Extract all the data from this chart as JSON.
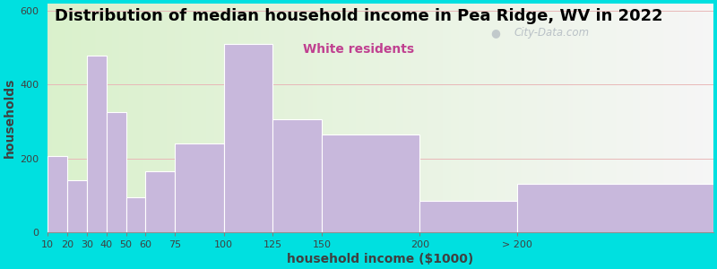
{
  "title": "Distribution of median household income in Pea Ridge, WV in 2022",
  "subtitle": "White residents",
  "xlabel": "household income ($1000)",
  "ylabel": "households",
  "bar_color": "#c8b8dc",
  "bar_edge_color": "white",
  "background_outer": "#00e0e0",
  "background_inner_left": "#d8f0c8",
  "background_inner_right": "#f5f5f5",
  "categories": [
    "10",
    "20",
    "30",
    "40",
    "50",
    "60",
    "75",
    "100",
    "125",
    "150",
    "200",
    "> 200"
  ],
  "values": [
    205,
    140,
    480,
    325,
    95,
    165,
    240,
    510,
    305,
    265,
    85,
    130
  ],
  "bin_left_edges": [
    10,
    20,
    30,
    40,
    50,
    60,
    75,
    100,
    125,
    150,
    200,
    250
  ],
  "bin_widths": [
    10,
    10,
    10,
    10,
    10,
    15,
    25,
    25,
    25,
    50,
    50,
    100
  ],
  "xlim_left": 10,
  "xlim_right": 350,
  "ylim": [
    0,
    620
  ],
  "yticks": [
    0,
    200,
    400,
    600
  ],
  "xtick_positions": [
    10,
    20,
    30,
    40,
    50,
    60,
    75,
    100,
    125,
    150,
    200,
    250
  ],
  "xtick_labels": [
    "10",
    "20",
    "30",
    "40",
    "50",
    "60",
    "75",
    "100",
    "125",
    "150",
    "200",
    "> 200"
  ],
  "watermark": "City-Data.com",
  "title_fontsize": 13,
  "subtitle_fontsize": 10,
  "axis_label_fontsize": 10,
  "grid_color": "#e8b8b8",
  "subtitle_color": "#c04090"
}
